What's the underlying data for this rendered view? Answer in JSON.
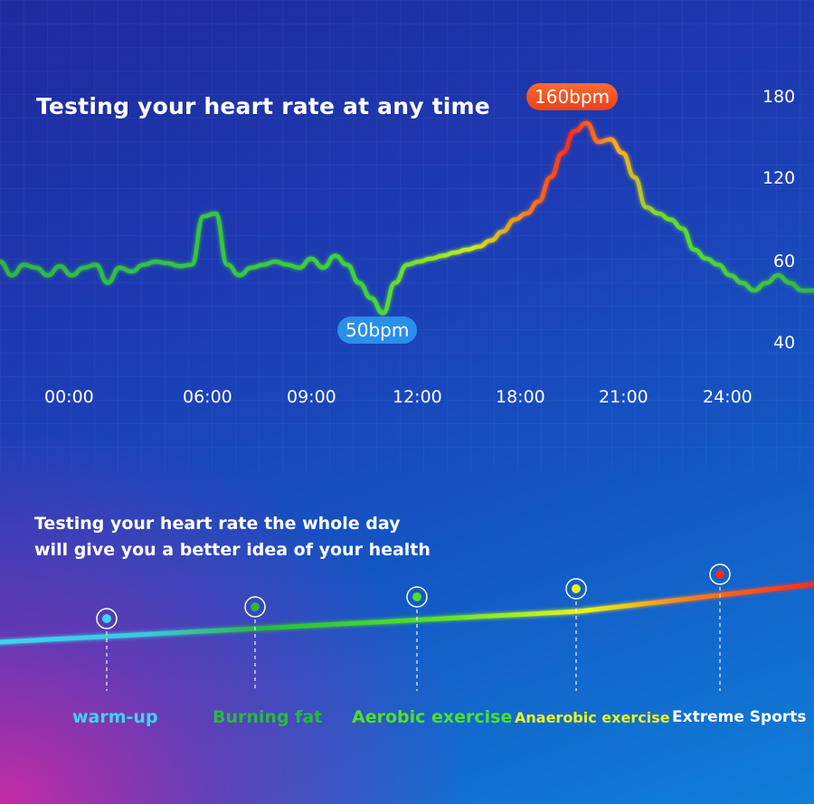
{
  "title": "Testing your heart rate at any time",
  "subtitle_lines": [
    "Testing your heart rate the whole day",
    "will give you a better idea of your health"
  ],
  "chart_data": {
    "type": "line",
    "title": "Testing your heart rate at any time",
    "xlabel": "",
    "ylabel": "",
    "x_tick_labels": [
      "00:00",
      "06:00",
      "09:00",
      "12:00",
      "18:00",
      "21:00",
      "24:00"
    ],
    "y_tick_labels": [
      "180",
      "120",
      "60",
      "40"
    ],
    "y_tick_values": [
      180,
      120,
      60,
      40
    ],
    "grid": true,
    "series": [
      {
        "values": [
          64,
          58,
          62,
          60,
          58,
          61,
          58,
          60,
          62,
          56,
          60,
          59,
          62,
          64,
          63,
          61,
          62,
          94,
          96,
          62,
          58,
          60,
          62,
          64,
          62,
          60,
          66,
          60,
          68,
          62,
          56,
          52,
          48,
          56,
          62,
          64,
          66,
          68,
          70,
          72,
          74,
          78,
          84,
          92,
          96,
          104,
          120,
          138,
          154,
          160,
          146,
          148,
          138,
          120,
          100,
          96,
          92,
          86,
          72,
          66,
          62,
          58,
          56,
          54,
          56,
          58,
          56,
          54,
          54
        ]
      }
    ],
    "annotations": [
      {
        "label": "160bpm",
        "value": 160
      },
      {
        "label": "50bpm",
        "value": 50
      }
    ]
  },
  "zones": [
    {
      "label": "warm-up",
      "color": "#3fd3f0"
    },
    {
      "label": "Burning fat",
      "color": "#2bb840"
    },
    {
      "label": "Aerobic exercise",
      "color": "#4fe02a"
    },
    {
      "label": "Anaerobic exercise",
      "color": "#e8f51e"
    },
    {
      "label": "Extreme Sports",
      "color": "#ff2a1a"
    }
  ]
}
